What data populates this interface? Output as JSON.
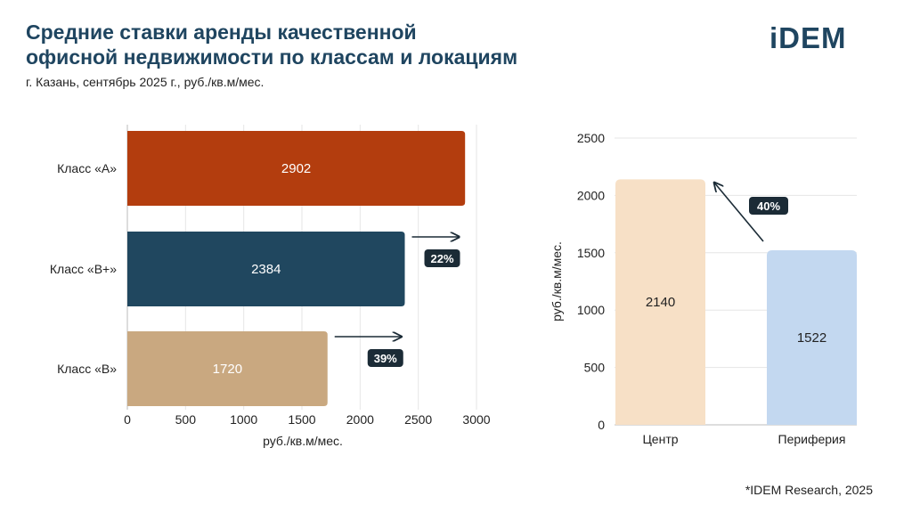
{
  "header": {
    "title_line1": "Средние ставки аренды качественной",
    "title_line2": "офисной недвижимости по классам и локациям",
    "subtitle": "г. Казань, сентябрь 2025 г., руб./кв.м/мес.",
    "logo": "iDEM"
  },
  "footer": {
    "source": "*IDEM Research, 2025"
  },
  "colors": {
    "title": "#1f4560",
    "badge": "#1b2b36"
  },
  "chart_data": [
    {
      "type": "bar",
      "orientation": "horizontal",
      "categories": [
        "Класс «А»",
        "Класс «B+»",
        "Класс «B»"
      ],
      "values": [
        2902,
        2384,
        1720
      ],
      "colors": [
        "#b33d0e",
        "#20475f",
        "#c9a880"
      ],
      "xlabel": "руб./кв.м/мес.",
      "xlim": [
        0,
        3000
      ],
      "xticks": [
        0,
        500,
        1000,
        1500,
        2000,
        2500,
        3000
      ],
      "grid": true,
      "annotations": [
        {
          "category": "Класс «B+»",
          "label": "22%"
        },
        {
          "category": "Класс «B»",
          "label": "39%"
        }
      ]
    },
    {
      "type": "bar",
      "orientation": "vertical",
      "categories": [
        "Центр",
        "Периферия"
      ],
      "values": [
        2140,
        1522
      ],
      "colors": [
        "#f7e0c6",
        "#c3d8f0"
      ],
      "ylabel": "руб./кв.м/мес.",
      "ylim": [
        0,
        2500
      ],
      "yticks": [
        0,
        500,
        1000,
        1500,
        2000,
        2500
      ],
      "grid": true,
      "annotations": [
        {
          "from": "Периферия",
          "to": "Центр",
          "label": "40%"
        }
      ]
    }
  ]
}
